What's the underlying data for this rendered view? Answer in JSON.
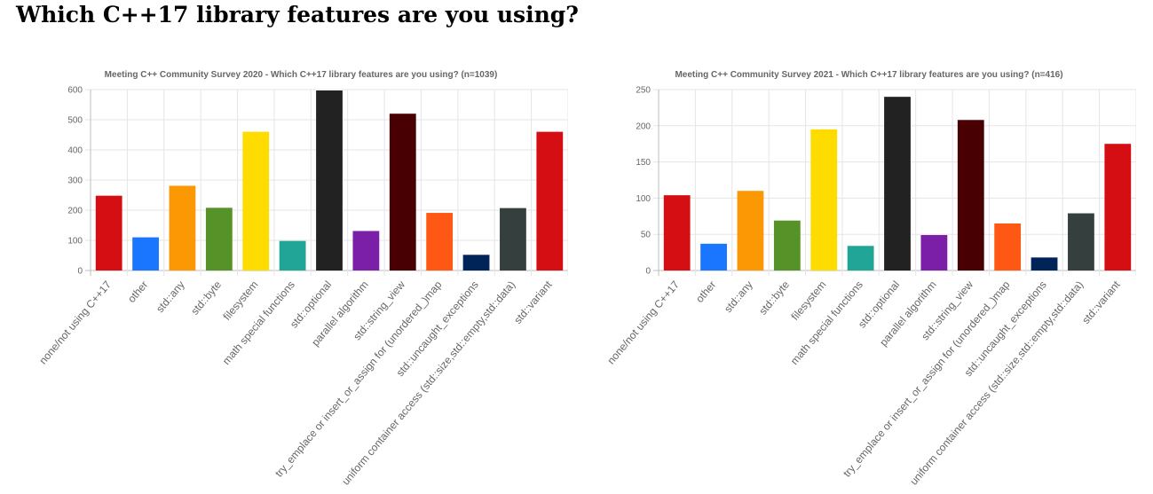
{
  "page": {
    "title": "Which C++17 library features are you using?"
  },
  "chart_data": [
    {
      "type": "bar",
      "title": "Meeting C++ Community Survey 2020 - Which C++17 library features are you using? (n=1039)",
      "categories": [
        "none/not using C++17",
        "other",
        "std::any",
        "std::byte",
        "filesystem",
        "math special functions",
        "std::optional",
        "parallel algorithm",
        "std::string_view",
        "try_emplace or insert_or_assign for (unordered_)map",
        "std::uncaught_exceptions",
        "uniform container access (std::size,std::empty,std::data)",
        "std::variant"
      ],
      "values": [
        248,
        110,
        281,
        208,
        460,
        98,
        597,
        131,
        520,
        191,
        52,
        207,
        460
      ],
      "colors": [
        "#d40e12",
        "#1a75ff",
        "#fb9803",
        "#579228",
        "#ffdc00",
        "#20a596",
        "#222222",
        "#7b1fa8",
        "#480002",
        "#ff5714",
        "#012458",
        "#353f3e",
        "#d40e12"
      ],
      "xlabel": "",
      "ylabel": "",
      "ylim": [
        0,
        600
      ],
      "yticks": [
        0,
        100,
        200,
        300,
        400,
        500,
        600
      ],
      "grid": true,
      "legend": "none"
    },
    {
      "type": "bar",
      "title": "Meeting C++ Community Survey 2021  - Which C++17 library features are you using? (n=416)",
      "categories": [
        "none/not using C++17",
        "other",
        "std::any",
        "std::byte",
        "filesystem",
        "math special functions",
        "std::optional",
        "parallel algorithm",
        "std::string_view",
        "try_emplace or insert_or_assign for (unordered_)map",
        "std::uncaught_exceptions",
        "uniform container access (std::size,std::empty,std::data)",
        "std::variant"
      ],
      "values": [
        104,
        37,
        110,
        69,
        195,
        34,
        240,
        49,
        208,
        65,
        18,
        79,
        175
      ],
      "colors": [
        "#d40e12",
        "#1a75ff",
        "#fb9803",
        "#579228",
        "#ffdc00",
        "#20a596",
        "#222222",
        "#7b1fa8",
        "#480002",
        "#ff5714",
        "#012458",
        "#353f3e",
        "#d40e12"
      ],
      "xlabel": "",
      "ylabel": "",
      "ylim": [
        0,
        250
      ],
      "yticks": [
        0,
        50,
        100,
        150,
        200,
        250
      ],
      "grid": true,
      "legend": "none"
    }
  ]
}
